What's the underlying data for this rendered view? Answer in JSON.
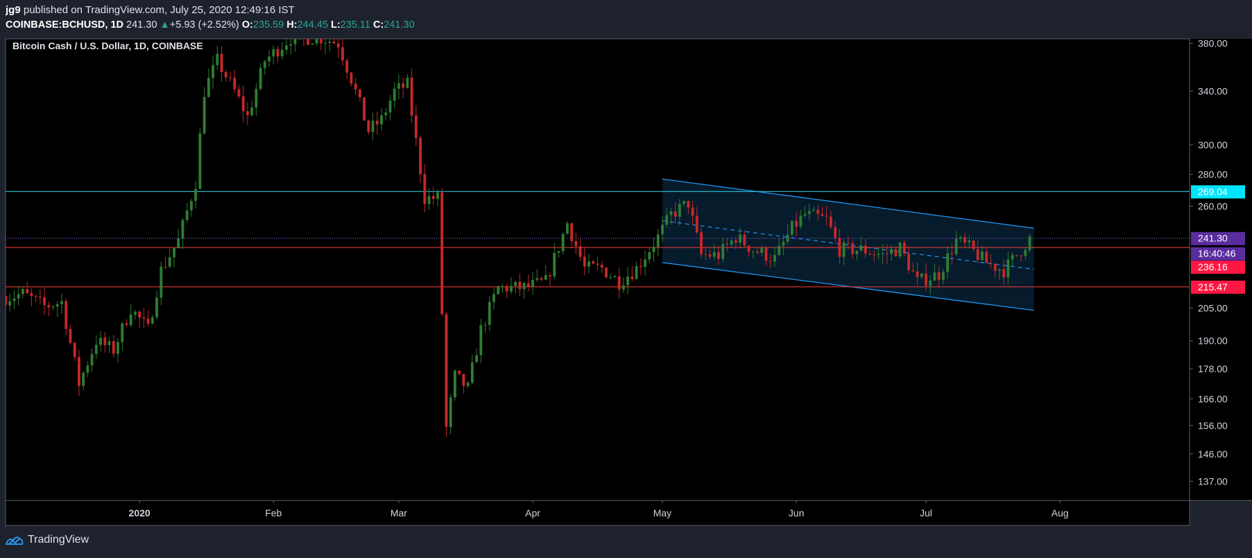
{
  "header": {
    "publisher": "jg9",
    "published_text": "published on TradingView.com, July 25, 2020 12:49:16 IST",
    "symbol": "COINBASE:BCHUSD, 1D",
    "last": "241.30",
    "change_arrow": "▲",
    "change": "+5.93 (+2.52%)",
    "o_label": "O:",
    "o_value": "235.59",
    "h_label": "H:",
    "h_value": "244.45",
    "l_label": "L:",
    "l_value": "235.11",
    "c_label": "C:",
    "c_value": "241.30"
  },
  "chart_title": "Bitcoin Cash / U.S. Dollar, 1D, COINBASE",
  "footer": {
    "brand": "TradingView"
  },
  "colors": {
    "background": "#000000",
    "up": "#26a69a",
    "down": "#e53935",
    "up_candle": "#2e7d32",
    "down_candle": "#c62828",
    "resistance": "#26c6da",
    "support": "#e53935",
    "channel": "#2196f3",
    "price_badge": "#5b2c9e",
    "timer_badge": "#5b2c9e"
  },
  "chart_data": {
    "type": "candlestick",
    "title": "Bitcoin Cash / U.S. Dollar, 1D, COINBASE",
    "xlabel": "",
    "ylabel": "",
    "y_scale": "log",
    "ylim": [
      131,
      384
    ],
    "x_range": [
      "2019-12-01",
      "2020-08-31"
    ],
    "y_ticks": [
      "380.00",
      "340.00",
      "300.00",
      "280.00",
      "260.00",
      "205.00",
      "190.00",
      "178.00",
      "166.00",
      "156.00",
      "146.00",
      "137.00"
    ],
    "x_ticks": [
      {
        "label": "2020",
        "date": "2020-01-01",
        "bold": true
      },
      {
        "label": "Feb",
        "date": "2020-02-01"
      },
      {
        "label": "Mar",
        "date": "2020-03-01"
      },
      {
        "label": "Apr",
        "date": "2020-04-01"
      },
      {
        "label": "May",
        "date": "2020-05-01"
      },
      {
        "label": "Jun",
        "date": "2020-06-01"
      },
      {
        "label": "Jul",
        "date": "2020-07-01"
      },
      {
        "label": "Aug",
        "date": "2020-08-01"
      }
    ],
    "horizontal_lines": [
      {
        "value": 269.04,
        "label": "269.04",
        "color": "#26c6da",
        "style": "solid"
      },
      {
        "value": 241.3,
        "label": "241.30",
        "color": "#5b2c9e",
        "style": "dotted"
      },
      {
        "value": 236.16,
        "label": "236.16",
        "color": "#e53935",
        "style": "solid"
      },
      {
        "value": 215.47,
        "label": "215.47",
        "color": "#e53935",
        "style": "solid"
      }
    ],
    "countdown_label": "16:40:46",
    "channel": {
      "start_date": "2020-05-01",
      "end_date": "2020-07-26",
      "upper": [
        277,
        247
      ],
      "lower": [
        228,
        204
      ]
    },
    "close_anchors": [
      [
        "2019-12-01",
        210
      ],
      [
        "2019-12-05",
        212
      ],
      [
        "2019-12-10",
        206
      ],
      [
        "2019-12-14",
        208
      ],
      [
        "2019-12-18",
        172
      ],
      [
        "2019-12-22",
        190
      ],
      [
        "2019-12-26",
        186
      ],
      [
        "2019-12-30",
        205
      ],
      [
        "2020-01-03",
        195
      ],
      [
        "2020-01-06",
        224
      ],
      [
        "2020-01-10",
        240
      ],
      [
        "2020-01-14",
        275
      ],
      [
        "2020-01-16",
        340
      ],
      [
        "2020-01-19",
        365
      ],
      [
        "2020-01-23",
        340
      ],
      [
        "2020-01-26",
        320
      ],
      [
        "2020-01-30",
        365
      ],
      [
        "2020-02-05",
        385
      ],
      [
        "2020-02-12",
        385
      ],
      [
        "2020-02-16",
        380
      ],
      [
        "2020-02-19",
        350
      ],
      [
        "2020-02-23",
        310
      ],
      [
        "2020-02-26",
        318
      ],
      [
        "2020-02-29",
        340
      ],
      [
        "2020-03-03",
        345
      ],
      [
        "2020-03-07",
        265
      ],
      [
        "2020-03-10",
        265
      ],
      [
        "2020-03-12",
        155
      ],
      [
        "2020-03-14",
        175
      ],
      [
        "2020-03-17",
        170
      ],
      [
        "2020-03-20",
        195
      ],
      [
        "2020-03-24",
        215
      ],
      [
        "2020-03-30",
        215
      ],
      [
        "2020-04-04",
        218
      ],
      [
        "2020-04-09",
        250
      ],
      [
        "2020-04-13",
        225
      ],
      [
        "2020-04-17",
        225
      ],
      [
        "2020-04-21",
        218
      ],
      [
        "2020-04-25",
        225
      ],
      [
        "2020-04-30",
        242
      ],
      [
        "2020-05-03",
        255
      ],
      [
        "2020-05-07",
        262
      ],
      [
        "2020-05-10",
        232
      ],
      [
        "2020-05-14",
        232
      ],
      [
        "2020-05-18",
        242
      ],
      [
        "2020-05-22",
        235
      ],
      [
        "2020-05-27",
        230
      ],
      [
        "2020-05-31",
        247
      ],
      [
        "2020-06-03",
        255
      ],
      [
        "2020-06-08",
        252
      ],
      [
        "2020-06-11",
        235
      ],
      [
        "2020-06-16",
        235
      ],
      [
        "2020-06-21",
        232
      ],
      [
        "2020-06-25",
        236
      ],
      [
        "2020-06-29",
        218
      ],
      [
        "2020-07-04",
        222
      ],
      [
        "2020-07-08",
        240
      ],
      [
        "2020-07-11",
        236
      ],
      [
        "2020-07-15",
        228
      ],
      [
        "2020-07-19",
        224
      ],
      [
        "2020-07-22",
        232
      ],
      [
        "2020-07-25",
        241
      ]
    ]
  }
}
